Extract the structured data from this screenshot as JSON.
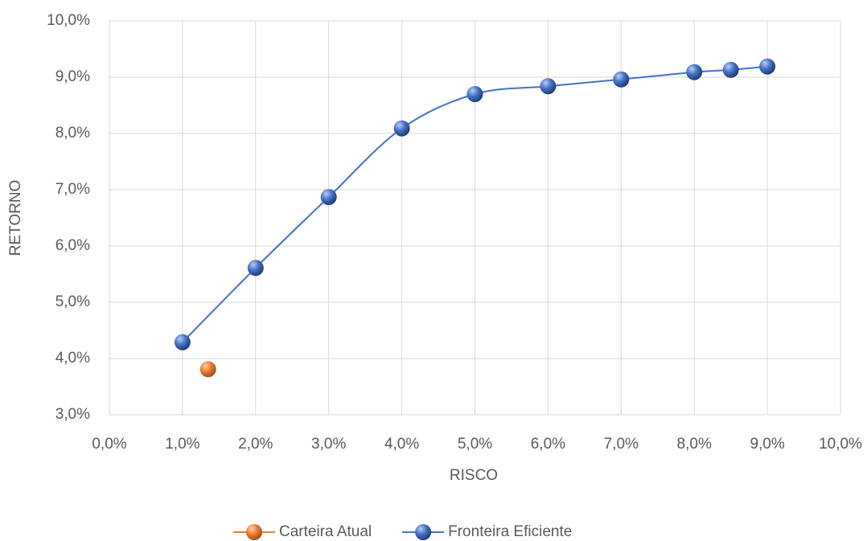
{
  "chart_data": {
    "type": "scatter",
    "x_label": "RISCO",
    "y_label": "RETORNO",
    "xlim": [
      0,
      10
    ],
    "ylim": [
      3,
      10
    ],
    "xticks": [
      {
        "value": 0,
        "label": "0,0%"
      },
      {
        "value": 1,
        "label": "1,0%"
      },
      {
        "value": 2,
        "label": "2,0%"
      },
      {
        "value": 3,
        "label": "3,0%"
      },
      {
        "value": 4,
        "label": "4,0%"
      },
      {
        "value": 5,
        "label": "5,0%"
      },
      {
        "value": 6,
        "label": "6,0%"
      },
      {
        "value": 7,
        "label": "7,0%"
      },
      {
        "value": 8,
        "label": "8,0%"
      },
      {
        "value": 9,
        "label": "9,0%"
      },
      {
        "value": 10,
        "label": "10,0%"
      }
    ],
    "yticks": [
      {
        "value": 3,
        "label": "3,0%"
      },
      {
        "value": 4,
        "label": "4,0%"
      },
      {
        "value": 5,
        "label": "5,0%"
      },
      {
        "value": 6,
        "label": "6,0%"
      },
      {
        "value": 7,
        "label": "7,0%"
      },
      {
        "value": 8,
        "label": "8,0%"
      },
      {
        "value": 9,
        "label": "9,0%"
      },
      {
        "value": 10,
        "label": "10,0%"
      }
    ],
    "grid": true,
    "legend": "bottom",
    "series": [
      {
        "name": "Carteira Atual",
        "color": "#ed7d31",
        "smooth_line": false,
        "x": [
          1.35
        ],
        "values": [
          3.81
        ]
      },
      {
        "name": "Fronteira Eficiente",
        "color": "#4472c4",
        "smooth_line": true,
        "x": [
          1,
          2,
          3,
          4,
          5,
          6,
          7,
          8,
          8.5,
          9
        ],
        "values": [
          4.29,
          5.61,
          6.87,
          8.09,
          8.7,
          8.84,
          8.96,
          9.09,
          9.13,
          9.19
        ]
      }
    ]
  }
}
